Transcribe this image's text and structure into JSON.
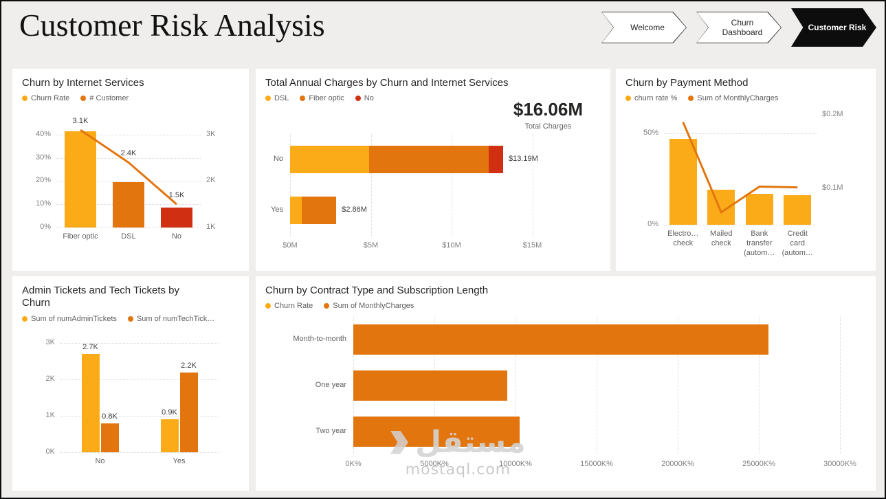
{
  "page": {
    "title": "Customer Risk Analysis"
  },
  "nav": {
    "items": [
      {
        "label": "Welcome",
        "active": false
      },
      {
        "label": "Churn Dashboard",
        "active": false
      },
      {
        "label": "Customer Risk",
        "active": true
      }
    ]
  },
  "palette": {
    "amber": "#FCAB18",
    "orange": "#E2750E",
    "red": "#D02F12",
    "line": "#E2750E",
    "background": "#EFEEED",
    "card": "#FFFFFF",
    "nav_active": "#0D0D0D"
  },
  "watermark": {
    "arabic": "مستقل",
    "domain": "mostaql.com"
  },
  "chart_data": [
    {
      "id": "internet",
      "type": "column-line-combo",
      "title": "Churn by Internet Services",
      "legend": [
        {
          "label": "Churn Rate",
          "color": "amber"
        },
        {
          "label": "# Customer",
          "color": "orange"
        }
      ],
      "categories": [
        "Fiber optic",
        "DSL",
        "No"
      ],
      "bars": {
        "name": "Churn Rate",
        "unit": "%",
        "values": [
          41.5,
          19.5,
          8.5
        ],
        "colors": [
          "amber",
          "orange",
          "red"
        ]
      },
      "line": {
        "name": "# Customer",
        "values": [
          3100,
          2400,
          1500
        ],
        "point_labels": [
          "3.1K",
          "2.4K",
          "1.5K"
        ]
      },
      "left_axis": {
        "tick_labels": [
          "0%",
          "10%",
          "20%",
          "30%",
          "40%"
        ],
        "tick_values": [
          0,
          10,
          20,
          30,
          40
        ],
        "max": 45
      },
      "right_axis": {
        "tick_labels": [
          "1K",
          "2K",
          "3K"
        ],
        "tick_values": [
          1000,
          2000,
          3000
        ],
        "min": 1000,
        "max": 3250
      }
    },
    {
      "id": "charges",
      "type": "stacked-bar-h",
      "title": "Total Annual Charges by Churn and Internet Services",
      "legend": [
        {
          "label": "DSL",
          "color": "amber"
        },
        {
          "label": "Fiber optic",
          "color": "orange"
        },
        {
          "label": "No",
          "color": "red"
        }
      ],
      "kpi": {
        "value": "$16.06M",
        "label": "Total Charges"
      },
      "series_colors": [
        "amber",
        "orange",
        "red"
      ],
      "rows": [
        {
          "category": "No",
          "values": [
            4.9,
            7.4,
            0.89
          ],
          "total_label": "$13.19M"
        },
        {
          "category": "Yes",
          "values": [
            0.72,
            2.14,
            0
          ],
          "total_label": "$2.86M"
        }
      ],
      "x_axis": {
        "unit": "$M",
        "tick_labels": [
          "$0M",
          "$5M",
          "$10M",
          "$15M"
        ],
        "tick_values": [
          0,
          5,
          10,
          15
        ]
      }
    },
    {
      "id": "payment",
      "type": "column-line-combo",
      "title": "Churn by Payment Method",
      "legend": [
        {
          "label": "churn rate %",
          "color": "amber"
        },
        {
          "label": "Sum of MonthlyCharges",
          "color": "orange"
        }
      ],
      "categories": [
        "Electro…\ncheck",
        "Mailed\ncheck",
        "Bank\ntransfer\n(autom…",
        "Credit\ncard\n(autom…"
      ],
      "bars": {
        "name": "churn rate %",
        "unit": "%",
        "values": [
          47,
          19,
          17,
          16
        ],
        "colors": [
          "amber",
          "amber",
          "amber",
          "amber"
        ]
      },
      "line": {
        "name": "Sum of MonthlyCharges",
        "unit": "$M",
        "values": [
          0.19,
          0.067,
          0.102,
          0.101
        ]
      },
      "left_axis": {
        "tick_labels": [
          "0%",
          "50%"
        ],
        "tick_values": [
          0,
          50
        ],
        "max": 60
      },
      "right_axis": {
        "tick_labels": [
          "$0.1M",
          "$0.2M"
        ],
        "tick_values": [
          0.1,
          0.2
        ],
        "min": 0.05,
        "max": 0.2
      }
    },
    {
      "id": "tickets",
      "type": "clustered-column",
      "title": "Admin Tickets and Tech Tickets by Churn",
      "legend": [
        {
          "label": "Sum of numAdminTickets",
          "color": "amber"
        },
        {
          "label": "Sum of numTechTick…",
          "color": "orange"
        }
      ],
      "categories": [
        "No",
        "Yes"
      ],
      "series": [
        {
          "name": "Sum of numAdminTickets",
          "color": "amber",
          "values": [
            2700,
            900
          ],
          "point_labels": [
            "2.7K",
            "0.9K"
          ]
        },
        {
          "name": "Sum of numTechTick…",
          "color": "orange",
          "values": [
            800,
            2200
          ],
          "point_labels": [
            "0.8K",
            "2.2K"
          ]
        }
      ],
      "y_axis": {
        "tick_labels": [
          "0K",
          "1K",
          "2K",
          "3K"
        ],
        "tick_values": [
          0,
          1000,
          2000,
          3000
        ],
        "max": 3250
      }
    },
    {
      "id": "contract",
      "type": "bar-h",
      "title": "Churn by Contract Type and Subscription Length",
      "legend": [
        {
          "label": "Churn Rate",
          "color": "amber"
        },
        {
          "label": "Sum of MonthlyCharges",
          "color": "orange"
        }
      ],
      "categories": [
        "Month-to-month",
        "One year",
        "Two year"
      ],
      "values": [
        25600,
        9500,
        10250
      ],
      "unit": "K%",
      "bar_color": "orange",
      "x_axis": {
        "tick_labels": [
          "0K%",
          "5000K%",
          "10000K%",
          "15000K%",
          "20000K%",
          "25000K%",
          "30000K%"
        ],
        "tick_values": [
          0,
          5000,
          10000,
          15000,
          20000,
          25000,
          30000
        ]
      }
    }
  ]
}
